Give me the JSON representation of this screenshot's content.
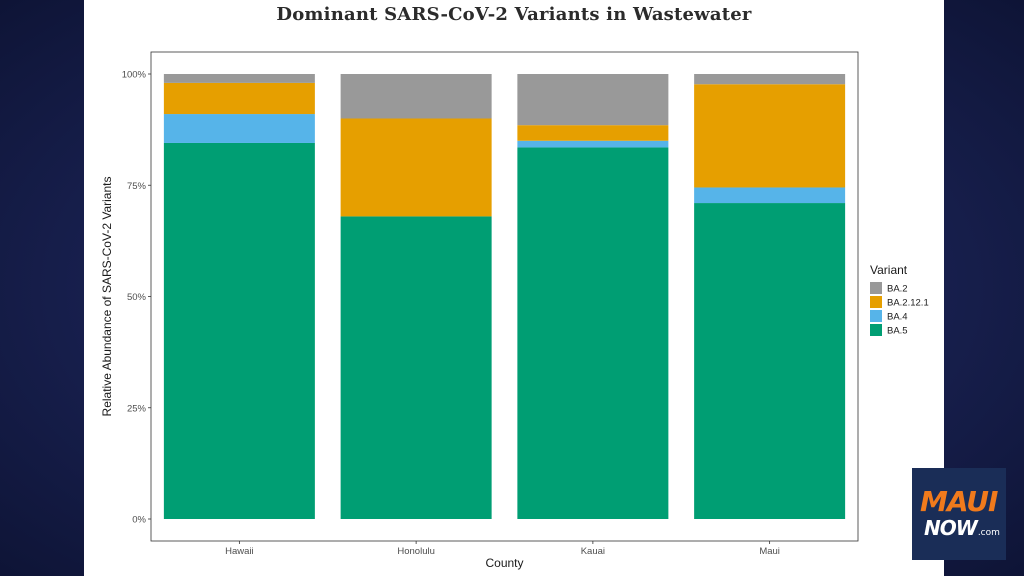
{
  "colors": {
    "BA.2": "#999999",
    "BA.2.12.1": "#e69f00",
    "BA.4": "#56b4e9",
    "BA.5": "#009e73"
  },
  "chart_data": {
    "type": "bar",
    "stacked": true,
    "title": "Dominant SARS-CoV-2 Variants in Wastewater",
    "xlabel": "County",
    "ylabel": "Relative Abundance of SARS-CoV-2 Variants",
    "categories": [
      "Hawaii",
      "Honolulu",
      "Kauai",
      "Maui"
    ],
    "series": [
      {
        "name": "BA.5",
        "values": [
          0.845,
          0.68,
          0.835,
          0.71
        ]
      },
      {
        "name": "BA.4",
        "values": [
          0.065,
          0,
          0.015,
          0.035
        ]
      },
      {
        "name": "BA.2.12.1",
        "values": [
          0.07,
          0.22,
          0.035,
          0.232
        ]
      },
      {
        "name": "BA.2",
        "values": [
          0.02,
          0.1,
          0.115,
          0.023
        ]
      }
    ],
    "ylim": [
      0,
      1
    ],
    "yticks": [
      0,
      0.25,
      0.5,
      0.75,
      1
    ],
    "ytick_labels": [
      "0%",
      "25%",
      "50%",
      "75%",
      "100%"
    ],
    "legend": {
      "title": "Variant",
      "position": "right",
      "entries": [
        "BA.2",
        "BA.2.12.1",
        "BA.4",
        "BA.5"
      ]
    },
    "grid": false
  },
  "logo": {
    "top": "MAUI",
    "bottom": "NOW",
    "suffix": ".com"
  }
}
